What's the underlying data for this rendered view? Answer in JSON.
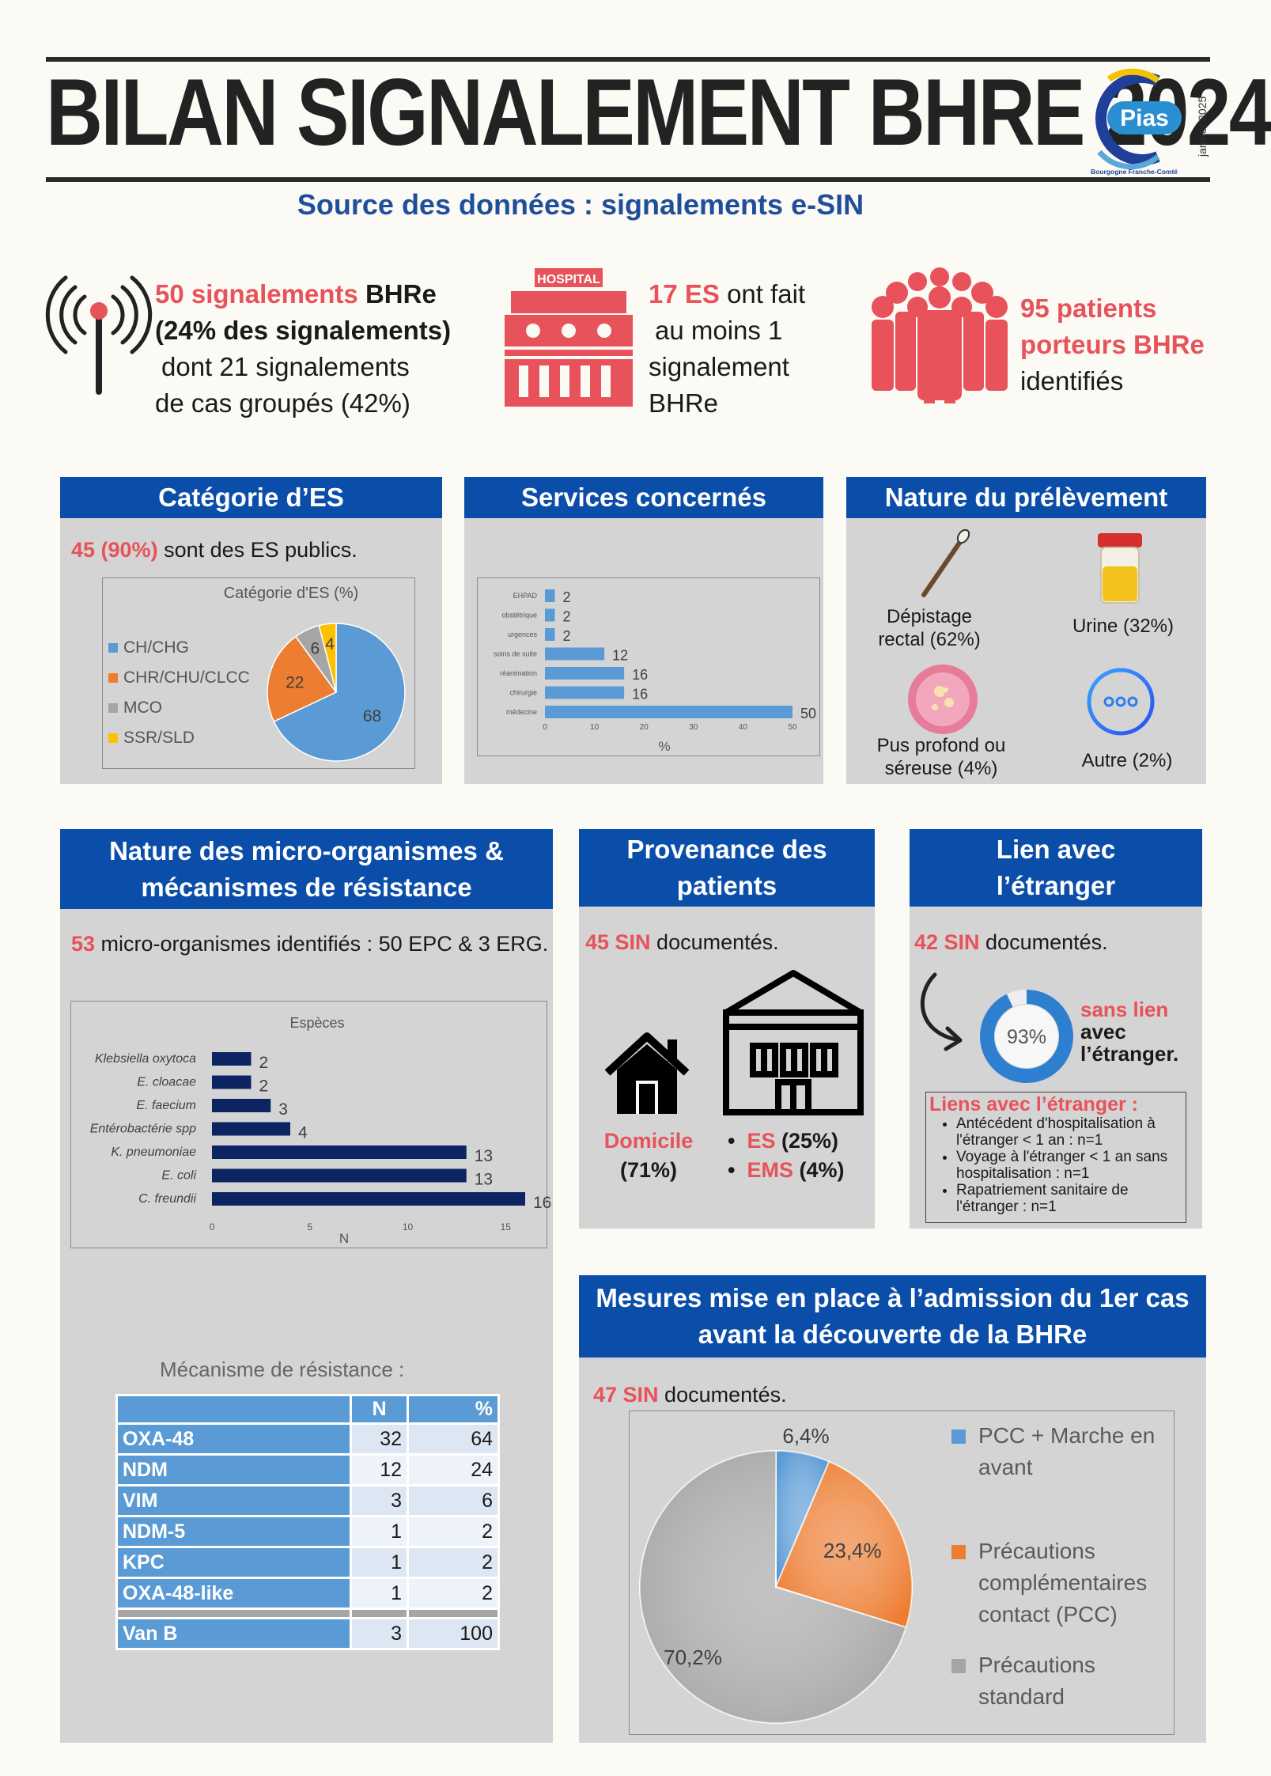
{
  "header": {
    "title": "BILAN SIGNALEMENT BHRE 2024",
    "logo_text": "Pias",
    "logo_sub": "Bourgogne Franche-Comté",
    "date": "janvier 2025",
    "subtitle": "Source des données : signalements e-SIN"
  },
  "colors": {
    "accent_red": "#e8525a",
    "brand_blue": "#0b4ea9",
    "panel_gray": "#d4d4d4"
  },
  "stats": {
    "signalements": {
      "count": "50 signalements",
      "bhre": " BHRe",
      "pct": "(24% des signalements)",
      "line3": "dont 21 signalements",
      "line4": "de cas groupés (42%)"
    },
    "es": {
      "count": "17 ES",
      "rest": " ont fait",
      "line2": "au moins 1",
      "line3": "signalement",
      "line4": "BHRe",
      "hospital_label": "HOSPITAL"
    },
    "patients": {
      "line1": "95 patients",
      "line2": "porteurs BHRe",
      "line3": "identifiés"
    }
  },
  "categorie_es": {
    "title": "Catégorie d’ES",
    "note_red": "45 (90%)",
    "note_rest": " sont des ES publics."
  },
  "services": {
    "title": "Services concernés"
  },
  "prelevement": {
    "title": "Nature du prélèvement",
    "items": [
      {
        "label1": "Dépistage",
        "label2": "rectal (62%)",
        "icon": "swab-icon"
      },
      {
        "label1": "Urine (32%)",
        "icon": "urine-cup-icon"
      },
      {
        "label1": "Pus profond ou",
        "label2": "séreuse (4%)",
        "icon": "petri-dish-icon"
      },
      {
        "label1": "Autre (2%)",
        "icon": "ellipsis-circle-icon"
      }
    ]
  },
  "micro": {
    "title_l1": "Nature des micro-organismes &",
    "title_l2": "mécanismes de résistance",
    "note_red": "53",
    "note_rest": " micro-organismes identifiés : 50 EPC & 3 ERG.",
    "mechanism_label": "Mécanisme de résistance :",
    "table": {
      "headers": [
        "",
        "N",
        "%"
      ],
      "rows": [
        {
          "k": "OXA-48",
          "n": "32",
          "p": "64"
        },
        {
          "k": "NDM",
          "n": "12",
          "p": "24"
        },
        {
          "k": "VIM",
          "n": "3",
          "p": "6"
        },
        {
          "k": "NDM-5",
          "n": "1",
          "p": "2"
        },
        {
          "k": "KPC",
          "n": "1",
          "p": "2"
        },
        {
          "k": "OXA-48-like",
          "n": "1",
          "p": "2"
        }
      ],
      "footer": {
        "k": "Van B",
        "n": "3",
        "p": "100"
      }
    }
  },
  "provenance": {
    "title_l1": "Provenance des",
    "title_l2": "patients",
    "note_red": "45 SIN",
    "note_rest": " documentés.",
    "domicile": "Domicile",
    "domicile_pct": "(71%)",
    "es": "ES",
    "es_pct": " (25%)",
    "ems": "EMS",
    "ems_pct": " (4%)"
  },
  "etranger": {
    "title_l1": "Lien avec",
    "title_l2": "l’étranger",
    "note_red": "42 SIN",
    "note_rest": " documentés.",
    "donut_pct": "93%",
    "sans_lien": "sans lien",
    "avec": "avec",
    "etranger": "l’étranger.",
    "liens_title": "Liens avec l’étranger :",
    "liens": [
      "Antécédent d'hospitalisation à l'étranger < 1 an : n=1",
      "Voyage à l'étranger < 1 an sans hospitalisation : n=1",
      "Rapatriement sanitaire de l'étranger : n=1"
    ]
  },
  "mesures": {
    "title_l1": "Mesures mise en place à l’admission du 1er cas",
    "title_l2": "avant la découverte de la BHRe",
    "note_red": "47 SIN",
    "note_rest": " documentés."
  },
  "chart_data": [
    {
      "type": "pie",
      "title": "Catégorie d'ES (%)",
      "categories": [
        "CH/CHG",
        "CHR/CHU/CLCC",
        "MCO",
        "SSR/SLD"
      ],
      "values": [
        68,
        22,
        6,
        4
      ],
      "colors": [
        "#5b9bd5",
        "#ed7d31",
        "#a5a5a5",
        "#ffc000"
      ],
      "legend": "left"
    },
    {
      "type": "bar",
      "orientation": "horizontal",
      "categories": [
        "EHPAD",
        "obstétrique",
        "urgences",
        "soins de suite",
        "réanimation",
        "chirurgie",
        "médecine"
      ],
      "values": [
        2,
        2,
        2,
        12,
        16,
        16,
        50
      ],
      "xlabel": "%",
      "xlim": [
        0,
        50
      ],
      "xticks": [
        0,
        10,
        20,
        30,
        40,
        50
      ],
      "color": "#5b9bd5"
    },
    {
      "type": "bar",
      "orientation": "horizontal",
      "title": "Espèces",
      "categories": [
        "Klebsiella oxytoca",
        "E. cloacae",
        "E. faecium",
        "Entérobactérie spp",
        "K. pneumoniae",
        "E. coli",
        "C. freundii"
      ],
      "values": [
        2,
        2,
        3,
        4,
        13,
        13,
        16
      ],
      "xlabel": "N",
      "xlim": [
        0,
        16
      ],
      "xticks": [
        0,
        5,
        10,
        15
      ],
      "color": "#0c2461"
    },
    {
      "type": "pie",
      "categories": [
        "PCC + Marche en avant",
        "Précautions complémentaires contact (PCC)",
        "Précautions standard"
      ],
      "values": [
        6.4,
        23.4,
        70.2
      ],
      "labels": [
        "6,4%",
        "23,4%",
        "70,2%"
      ],
      "colors": [
        "#5b9bd5",
        "#ed7d31",
        "#a5a5a5"
      ],
      "legend": "right"
    },
    {
      "type": "pie",
      "categories": [
        "sans lien avec l’étranger",
        "lien avec l’étranger"
      ],
      "values": [
        93,
        7
      ],
      "labels": [
        "93%"
      ]
    }
  ]
}
